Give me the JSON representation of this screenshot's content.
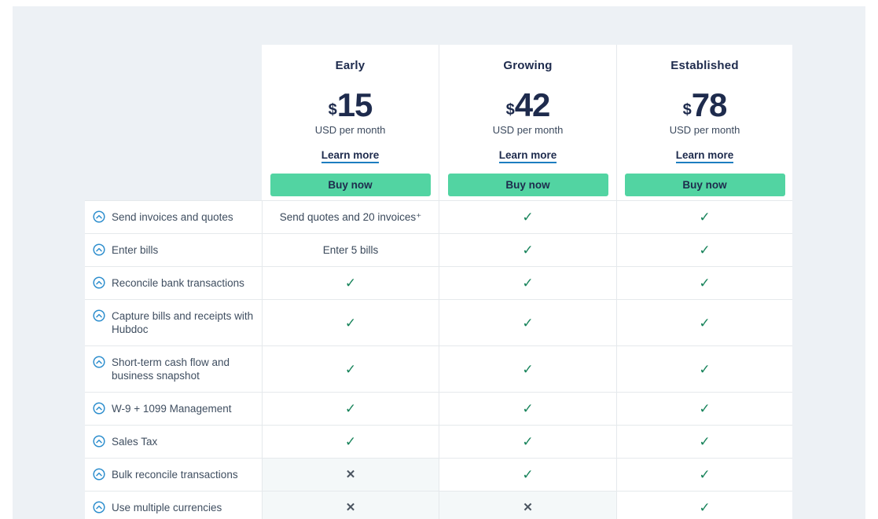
{
  "plans": [
    {
      "name": "Early",
      "currency": "$",
      "price": "15",
      "period": "USD per month",
      "learn_more": "Learn more",
      "buy_now": "Buy now"
    },
    {
      "name": "Growing",
      "currency": "$",
      "price": "42",
      "period": "USD per month",
      "learn_more": "Learn more",
      "buy_now": "Buy now"
    },
    {
      "name": "Established",
      "currency": "$",
      "price": "78",
      "period": "USD per month",
      "learn_more": "Learn more",
      "buy_now": "Buy now"
    }
  ],
  "features": [
    {
      "label": "Send invoices and quotes",
      "cells": [
        {
          "type": "text",
          "value": "Send quotes and 20 invoices⁺"
        },
        {
          "type": "check"
        },
        {
          "type": "check"
        }
      ]
    },
    {
      "label": "Enter bills",
      "cells": [
        {
          "type": "text",
          "value": "Enter 5 bills"
        },
        {
          "type": "check"
        },
        {
          "type": "check"
        }
      ]
    },
    {
      "label": "Reconcile bank transactions",
      "cells": [
        {
          "type": "check"
        },
        {
          "type": "check"
        },
        {
          "type": "check"
        }
      ]
    },
    {
      "label": "Capture bills and receipts with Hubdoc",
      "cells": [
        {
          "type": "check"
        },
        {
          "type": "check"
        },
        {
          "type": "check"
        }
      ]
    },
    {
      "label": "Short-term cash flow and business snapshot",
      "cells": [
        {
          "type": "check"
        },
        {
          "type": "check"
        },
        {
          "type": "check"
        }
      ]
    },
    {
      "label": "W-9 + 1099 Management",
      "cells": [
        {
          "type": "check"
        },
        {
          "type": "check"
        },
        {
          "type": "check"
        }
      ]
    },
    {
      "label": "Sales Tax",
      "cells": [
        {
          "type": "check"
        },
        {
          "type": "check"
        },
        {
          "type": "check"
        }
      ]
    },
    {
      "label": "Bulk reconcile transactions",
      "cells": [
        {
          "type": "cross"
        },
        {
          "type": "check"
        },
        {
          "type": "check"
        }
      ]
    },
    {
      "label": "Use multiple currencies",
      "cells": [
        {
          "type": "cross"
        },
        {
          "type": "cross"
        },
        {
          "type": "check"
        }
      ]
    },
    {
      "label": "",
      "partial": true,
      "cells": [
        {
          "type": "cross"
        },
        {
          "type": "cross"
        },
        {
          "type": "check"
        }
      ]
    }
  ],
  "glyphs": {
    "check": "✓",
    "cross": "✕"
  },
  "colors": {
    "panel_bg": "#edf1f5",
    "accent_mint": "#52d4a2",
    "navy": "#1e2b4d",
    "check_green": "#17835a",
    "cross_gray": "#4a5460",
    "muted_cell_bg": "#f4f8f9",
    "link_underline_blue": "#1c7dc0",
    "feature_icon_blue": "#2f8fce"
  }
}
